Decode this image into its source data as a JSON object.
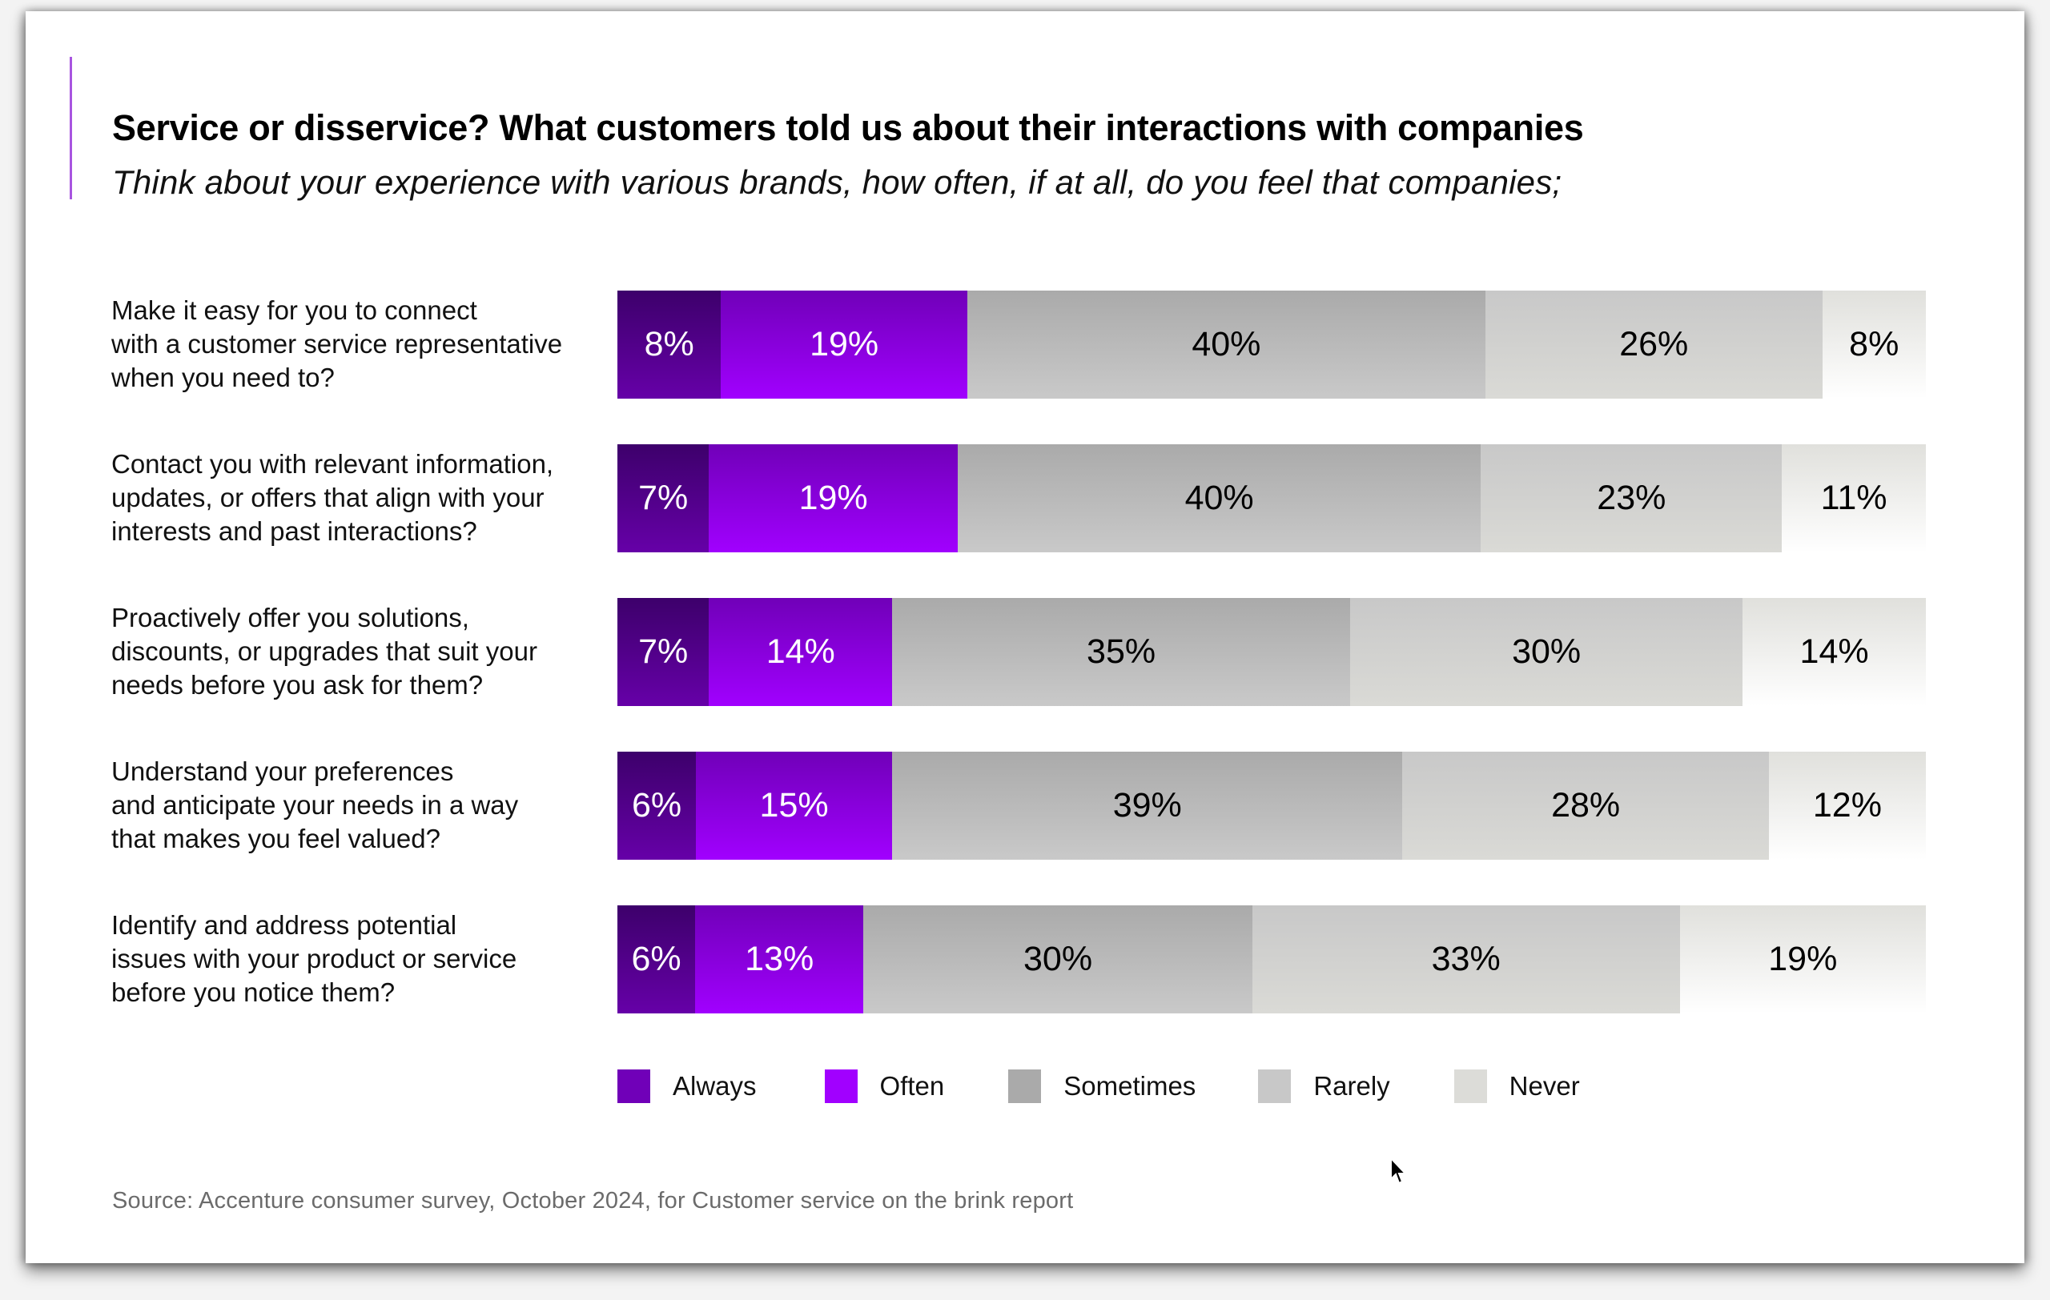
{
  "header": {
    "title": "Service or disservice? What customers told us about their interactions with companies",
    "subtitle": "Think about your experience with various brands, how often, if at all, do you feel that companies;"
  },
  "rows": [
    {
      "label_lines": [
        "Make it easy for you to connect",
        "with a customer service representative",
        "when you need to?"
      ]
    },
    {
      "label_lines": [
        "Contact you with relevant information,",
        "updates, or offers that align with your",
        "interests and past interactions?"
      ]
    },
    {
      "label_lines": [
        "Proactively offer you solutions,",
        "discounts, or upgrades that suit your",
        "needs before you ask for them?"
      ]
    },
    {
      "label_lines": [
        "Understand your preferences",
        "and anticipate your needs in a way",
        "that makes you feel valued?"
      ]
    },
    {
      "label_lines": [
        "Identify and address potential",
        "issues with your product or service",
        "before you notice them?"
      ]
    }
  ],
  "legend": [
    {
      "key": "always",
      "label": "Always",
      "color": "#7000b8"
    },
    {
      "key": "often",
      "label": "Often",
      "color": "#a100ff"
    },
    {
      "key": "sometimes",
      "label": "Sometimes",
      "color": "#aaaaaa"
    },
    {
      "key": "rarely",
      "label": "Rarely",
      "color": "#c8c8c8"
    },
    {
      "key": "never",
      "label": "Never",
      "color": "#dcdcd8"
    }
  ],
  "source": "Source: Accenture consumer survey, October 2024, for Customer service on the brink report",
  "chart_data": {
    "type": "bar",
    "orientation": "horizontal",
    "stacked": true,
    "title": "Service or disservice? What customers told us about their interactions with companies",
    "subtitle": "Think about your experience with various brands, how often, if at all, do you feel that companies;",
    "categories": [
      "Make it easy for you to connect with a customer service representative when you need to?",
      "Contact you with relevant information, updates, or offers that align with your interests and past interactions?",
      "Proactively offer you solutions, discounts, or upgrades that suit your needs before you ask for them?",
      "Understand your preferences and anticipate your needs in a way that makes you feel valued?",
      "Identify and address potential issues with your product or service before you notice them?"
    ],
    "series": [
      {
        "name": "Always",
        "values": [
          8,
          7,
          7,
          6,
          6
        ]
      },
      {
        "name": "Often",
        "values": [
          19,
          19,
          14,
          15,
          13
        ]
      },
      {
        "name": "Sometimes",
        "values": [
          40,
          40,
          35,
          39,
          30
        ]
      },
      {
        "name": "Rarely",
        "values": [
          26,
          23,
          30,
          28,
          33
        ]
      },
      {
        "name": "Never",
        "values": [
          8,
          11,
          14,
          12,
          19
        ]
      }
    ],
    "value_suffix": "%",
    "xlabel": "",
    "ylabel": "",
    "grid": false,
    "legend_position": "bottom",
    "source": "Source: Accenture consumer survey, October 2024, for Customer service on the brink report"
  }
}
